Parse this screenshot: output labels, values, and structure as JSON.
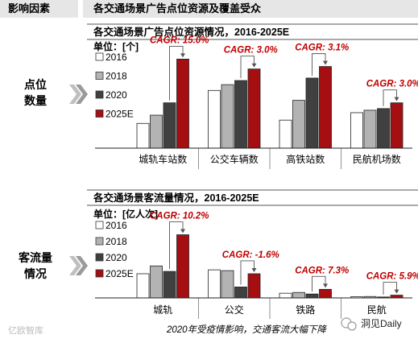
{
  "header": {
    "left_title": "影响因素",
    "right_title": "各交通场景广告点位资源及覆盖受众"
  },
  "side_labels": [
    {
      "line1": "点位",
      "line2": "数量"
    },
    {
      "line1": "客流量",
      "line2": "情况"
    }
  ],
  "colors": {
    "2016": "#ffffff",
    "2018": "#b3b3b3",
    "2020": "#404040",
    "2025E": "#a50f12",
    "cagr": "#c00000",
    "header_bg": "#e6e6e6",
    "arrow": "#bfbfbf"
  },
  "chart_data": [
    {
      "type": "bar",
      "title": "各交通场景广告点位资源情况，2016-2025E",
      "unit_label": "单位：[个]",
      "categories": [
        "城轨车站数",
        "公交车辆数",
        "高铁站数",
        "民航机场数"
      ],
      "series": [
        {
          "name": "2016",
          "values": [
            3.0,
            7.0,
            3.4,
            4.3
          ]
        },
        {
          "name": "2018",
          "values": [
            4.0,
            7.7,
            5.8,
            4.6
          ]
        },
        {
          "name": "2020",
          "values": [
            5.5,
            8.2,
            8.5,
            4.8
          ]
        },
        {
          "name": "2025E",
          "values": [
            10.8,
            9.6,
            9.9,
            5.5
          ]
        }
      ],
      "cagr_labels": [
        "CAGR: 15.0%",
        "CAGR: 3.0%",
        "CAGR: 3.1%",
        "CAGR: 3.0%"
      ],
      "ylim": [
        0,
        12.5
      ],
      "grid": false,
      "legend": "left"
    },
    {
      "type": "bar",
      "title": "各交通场景客流量情况，2016-2025E",
      "unit_label": "单位：[亿人次]",
      "categories": [
        "城轨",
        "公交",
        "铁路",
        "民航"
      ],
      "series": [
        {
          "name": "2016",
          "values": [
            3.1,
            3.6,
            0.6,
            0.15
          ]
        },
        {
          "name": "2018",
          "values": [
            4.1,
            3.5,
            0.7,
            0.18
          ]
        },
        {
          "name": "2020",
          "values": [
            3.4,
            1.4,
            0.5,
            0.12
          ]
        },
        {
          "name": "2025E",
          "values": [
            8.1,
            3.1,
            1.1,
            0.35
          ]
        }
      ],
      "cagr_labels": [
        "CAGR: 10.2%",
        "CAGR: -1.6%",
        "CAGR: 7.3%",
        "CAGR: 5.9%"
      ],
      "ylim": [
        0,
        9.5
      ],
      "grid": false,
      "legend": "left"
    }
  ],
  "footnote": "2020年受疫情影响，交通客流大幅下降",
  "watermark_left": "亿欧智库",
  "watermark_right": "洞见Daily"
}
